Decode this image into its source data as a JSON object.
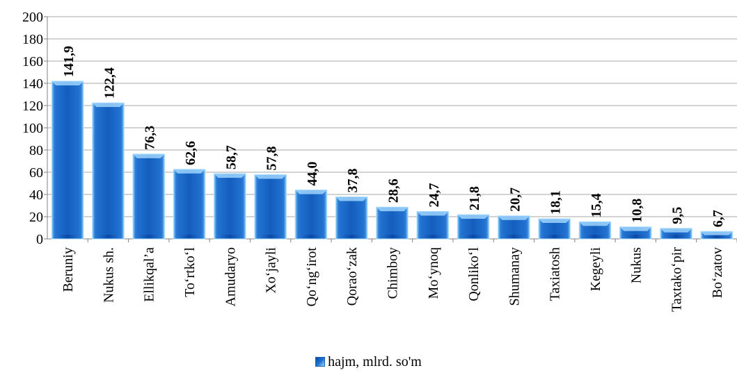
{
  "chart_data": {
    "type": "bar",
    "categories": [
      "Beruniy",
      "Nukus sh.",
      "Ellikqal’a",
      "To‘rtko‘l",
      "Amudaryo",
      "Xo‘jayli",
      "Qo‘ng‘irot",
      "Qorao‘zak",
      "Chimboy",
      "Mo‘ynoq",
      "Qonliko‘l",
      "Shumanay",
      "Taxiatosh",
      "Kegeyli",
      "Nukus",
      "Taxtako‘pir",
      "Bo‘zatov"
    ],
    "series": [
      {
        "name": "hajm, mlrd. so'm",
        "values": [
          141.9,
          122.4,
          76.3,
          62.6,
          58.7,
          57.8,
          44.0,
          37.8,
          28.6,
          24.7,
          21.8,
          20.7,
          18.1,
          15.4,
          10.8,
          9.5,
          6.7
        ],
        "data_labels": [
          "141,9",
          "122,4",
          "76,3",
          "62,6",
          "58,7",
          "57,8",
          "44,0",
          "37,8",
          "28,6",
          "24,7",
          "21,8",
          "20,7",
          "18,1",
          "15,4",
          "10,8",
          "9,5",
          "6,7"
        ]
      }
    ],
    "ylim": [
      0,
      200
    ],
    "yticks": [
      "0",
      "20",
      "40",
      "60",
      "80",
      "100",
      "120",
      "140",
      "160",
      "180",
      "200"
    ],
    "grid": true,
    "legend_position": "bottom",
    "colors": {
      "bar_dark": "#0a4aa8",
      "bar_mid": "#1e6fd0",
      "bar_edge": "#a8dcff",
      "grid": "#a6a6a6"
    }
  }
}
